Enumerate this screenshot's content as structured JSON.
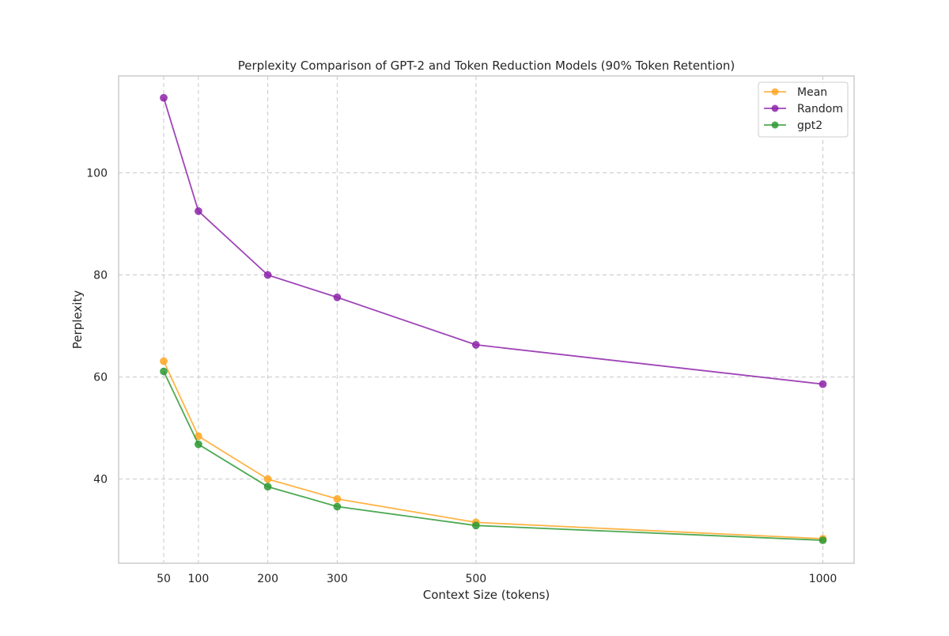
{
  "chart_data": {
    "type": "line",
    "title": "Perplexity Comparison of GPT-2 and Token Reduction Models (90% Token Retention)",
    "xlabel": "Context Size (tokens)",
    "ylabel": "Perplexity",
    "x": [
      50,
      100,
      200,
      300,
      500,
      1000
    ],
    "x_ticks": [
      "50",
      "100",
      "200",
      "300",
      "500",
      "1000"
    ],
    "y_ticks": [
      "40",
      "60",
      "80",
      "100"
    ],
    "xlim": [
      -15,
      1045
    ],
    "ylim": [
      23.5,
      119
    ],
    "grid": true,
    "legend_position": "top-right",
    "series": [
      {
        "name": "Mean",
        "color": "#ffa726",
        "values": [
          63.1,
          48.4,
          40.0,
          36.1,
          31.5,
          28.3
        ]
      },
      {
        "name": "Random",
        "color": "#8e24aa",
        "values": [
          114.7,
          92.5,
          80.0,
          75.6,
          66.3,
          58.6
        ]
      },
      {
        "name": "gpt2",
        "color": "#2e9a35",
        "values": [
          61.1,
          46.8,
          38.5,
          34.6,
          30.9,
          28.0
        ]
      }
    ]
  }
}
